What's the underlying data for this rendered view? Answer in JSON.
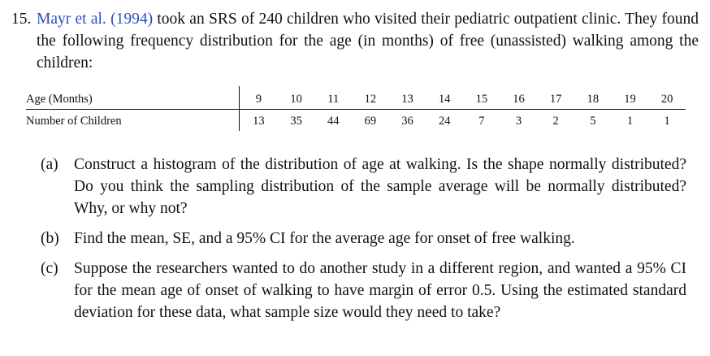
{
  "problem": {
    "number": "15.",
    "citation": "Mayr et al. (1994)",
    "intro_rest": " took an SRS of 240 children who visited their pediatric outpatient clinic. They found the following frequency distribution for the age (in months) of free (unassisted) walking among the children:"
  },
  "table": {
    "row1_label": "Age (Months)",
    "row2_label": "Number of Children",
    "ages": [
      "9",
      "10",
      "11",
      "12",
      "13",
      "14",
      "15",
      "16",
      "17",
      "18",
      "19",
      "20"
    ],
    "counts": [
      "13",
      "35",
      "44",
      "69",
      "36",
      "24",
      "7",
      "3",
      "2",
      "5",
      "1",
      "1"
    ]
  },
  "parts": [
    {
      "label": "(a)",
      "text": "Construct a histogram of the distribution of age at walking. Is the shape normally distributed? Do you think the sampling distribution of the sample average will be normally distributed? Why, or why not?"
    },
    {
      "label": "(b)",
      "text": "Find the mean, SE, and a 95% CI for the average age for onset of free walking."
    },
    {
      "label": "(c)",
      "text": "Suppose the researchers wanted to do another study in a different region, and wanted a 95% CI for the mean age of onset of walking to have margin of error 0.5. Using the estimated standard deviation for these data, what sample size would they need to take?"
    }
  ]
}
